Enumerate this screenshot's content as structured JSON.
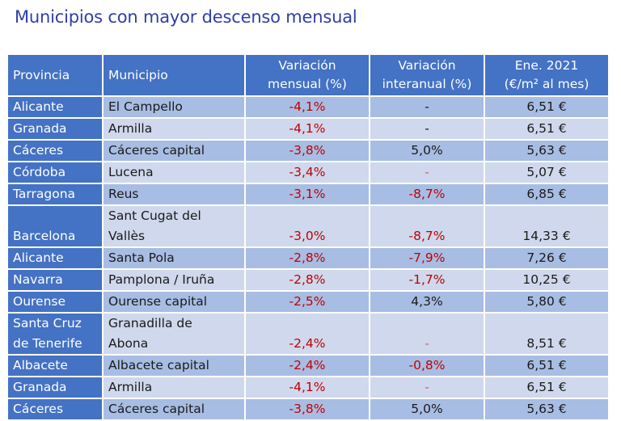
{
  "title": "Municipios con mayor descenso mensual",
  "table": {
    "headers": {
      "provincia": "Provincia",
      "municipio": "Municipio",
      "var_mensual_1": "Variación",
      "var_mensual_2": "mensual (%)",
      "var_interanual_1": "Variación",
      "var_interanual_2": "interanual (%)",
      "precio_1": "Ene. 2021",
      "precio_2": "(€/m² al mes)"
    },
    "rows": [
      {
        "provincia": [
          "Alicante"
        ],
        "municipio": [
          "El Campello"
        ],
        "mensual": "-4,1%",
        "interanual": "-",
        "precio": "6,51 €"
      },
      {
        "provincia": [
          "Granada"
        ],
        "municipio": [
          "Armilla"
        ],
        "mensual": "-4,1%",
        "interanual": "-",
        "precio": "6,51 €"
      },
      {
        "provincia": [
          "Cáceres"
        ],
        "municipio": [
          "Cáceres capital"
        ],
        "mensual": "-3,8%",
        "interanual": "5,0%",
        "precio": "5,63 €"
      },
      {
        "provincia": [
          "Córdoba"
        ],
        "municipio": [
          "Lucena"
        ],
        "mensual": "-3,4%",
        "interanual": "-",
        "precio": "5,07 €"
      },
      {
        "provincia": [
          "Tarragona"
        ],
        "municipio": [
          "Reus"
        ],
        "mensual": "-3,1%",
        "interanual": "-8,7%",
        "precio": "6,85 €"
      },
      {
        "provincia": [
          "Barcelona"
        ],
        "municipio": [
          "Sant Cugat del",
          "Vallès"
        ],
        "mensual": "-3,0%",
        "interanual": "-8,7%",
        "precio": "14,33 €"
      },
      {
        "provincia": [
          "Alicante"
        ],
        "municipio": [
          "Santa Pola"
        ],
        "mensual": "-2,8%",
        "interanual": "-7,9%",
        "precio": "7,26 €"
      },
      {
        "provincia": [
          "Navarra"
        ],
        "municipio": [
          "Pamplona / Iruña"
        ],
        "mensual": "-2,8%",
        "interanual": "-1,7%",
        "precio": "10,25 €"
      },
      {
        "provincia": [
          "Ourense"
        ],
        "municipio": [
          "Ourense capital"
        ],
        "mensual": "-2,5%",
        "interanual": "4,3%",
        "precio": "5,80 €"
      },
      {
        "provincia": [
          "Santa Cruz",
          "de Tenerife"
        ],
        "municipio": [
          "Granadilla de",
          "Abona"
        ],
        "mensual": "-2,4%",
        "interanual": "-",
        "precio": "8,51 €"
      },
      {
        "provincia": [
          "Albacete"
        ],
        "municipio": [
          "Albacete capital"
        ],
        "mensual": "-2,4%",
        "interanual": "-0,8%",
        "precio": "6,51 €"
      },
      {
        "provincia": [
          "Granada"
        ],
        "municipio": [
          "Armilla"
        ],
        "mensual": "-4,1%",
        "interanual": "-",
        "precio": "6,51 €"
      },
      {
        "provincia": [
          "Cáceres"
        ],
        "municipio": [
          "Cáceres capital"
        ],
        "mensual": "-3,8%",
        "interanual": "5,0%",
        "precio": "5,63 €"
      }
    ],
    "colors": {
      "header_bg": "#4472c4",
      "row_light": "#cfd8ec",
      "row_dark": "#a8bde3",
      "negative": "#c00000",
      "title": "#2f3fa6"
    }
  }
}
